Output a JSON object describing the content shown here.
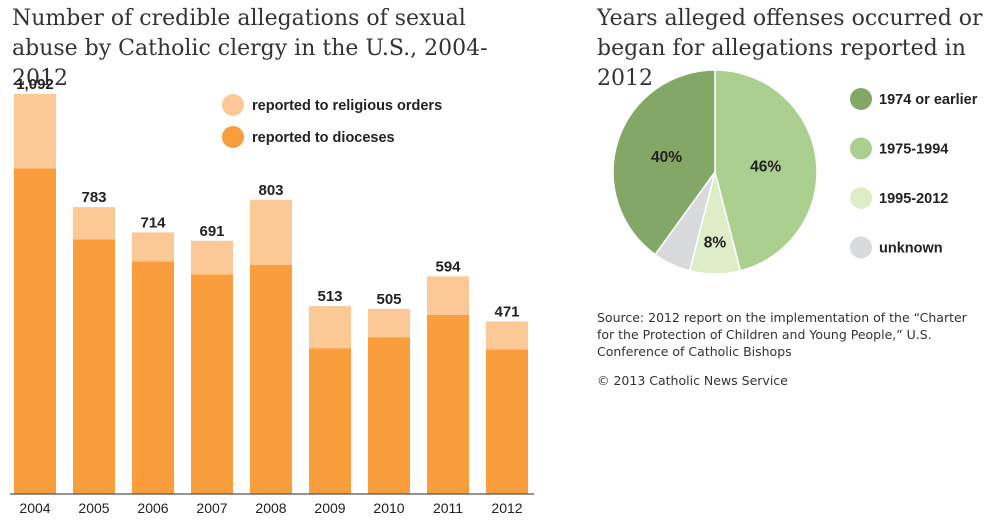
{
  "chart_data": [
    {
      "type": "bar",
      "stacked": true,
      "title": "Number of credible allegations of sexual abuse by Catholic clergy in the U.S., 2004-2012",
      "categories": [
        "2004",
        "2005",
        "2006",
        "2007",
        "2008",
        "2009",
        "2010",
        "2011",
        "2012"
      ],
      "totals": [
        1092,
        783,
        714,
        691,
        803,
        513,
        505,
        594,
        471
      ],
      "total_labels": [
        "1,092",
        "783",
        "714",
        "691",
        "803",
        "513",
        "505",
        "594",
        "471"
      ],
      "series": [
        {
          "name": "reported to dioceses",
          "color": "#f99d3d",
          "values": [
            889,
            695,
            635,
            599,
            625,
            398,
            428,
            489,
            395
          ]
        },
        {
          "name": "reported to religious orders",
          "color": "#fcc895",
          "values": [
            203,
            88,
            79,
            92,
            178,
            115,
            77,
            105,
            76
          ]
        }
      ],
      "legend": {
        "placement": "top-right",
        "order": [
          "reported to religious orders",
          "reported to dioceses"
        ]
      },
      "ylim": [
        0,
        1130
      ],
      "grid": false
    },
    {
      "type": "pie",
      "title": "Years alleged offenses occurred or began for allegations reported in 2012",
      "slices": [
        {
          "label": "1975-1994",
          "value": 46,
          "display": "46%",
          "color": "#abcf8f"
        },
        {
          "label": "1995-2012",
          "value": 8,
          "display": "8%",
          "color": "#dcedc7"
        },
        {
          "label": "unknown",
          "value": 6,
          "display": "",
          "color": "#d9dadc"
        },
        {
          "label": "1974 or earlier",
          "value": 40,
          "display": "40%",
          "color": "#83a766"
        }
      ],
      "legend": {
        "placement": "right",
        "order": [
          "1974 or earlier",
          "1975-1994",
          "1995-2012",
          "unknown"
        ]
      }
    }
  ],
  "source": "Source: 2012 report on the implementation of the “Charter for the Protection of Children and Young People,” U.S. Conference of Catholic Bishops",
  "copyright": "© 2013 Catholic News Service"
}
